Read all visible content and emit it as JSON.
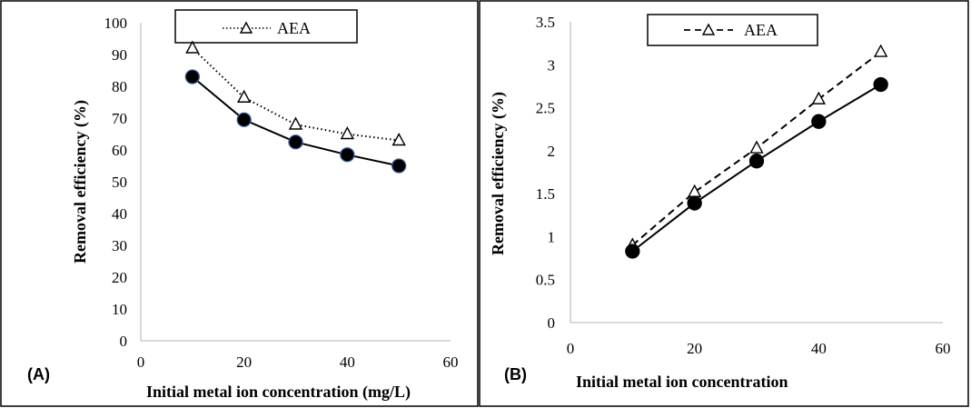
{
  "chart_data": [
    {
      "type": "line",
      "panel_label": "(A)",
      "xlabel": "Initial metal ion concentration (mg/L)",
      "ylabel": "Removal efficiency (%)",
      "xlim": [
        0,
        60
      ],
      "ylim": [
        0,
        100
      ],
      "xticks": [
        "0",
        "20",
        "40",
        "60"
      ],
      "yticks": [
        "0",
        "10",
        "20",
        "30",
        "40",
        "50",
        "60",
        "70",
        "80",
        "90",
        "100"
      ],
      "x": [
        10,
        20,
        30,
        40,
        50
      ],
      "series": [
        {
          "name": "AEA",
          "marker": "triangle-open",
          "line": "dotted",
          "values": [
            92,
            76.5,
            68,
            65,
            63
          ]
        },
        {
          "name": "",
          "marker": "circle-filled",
          "line": "solid",
          "values": [
            83,
            69.5,
            62.5,
            58.5,
            55
          ]
        }
      ],
      "legend": {
        "entries": [
          "AEA"
        ],
        "placement": "top"
      },
      "grid": false
    },
    {
      "type": "line",
      "panel_label": "(B)",
      "xlabel": "Initial metal ion concentration",
      "ylabel": "Removal efficiency (%)",
      "xlim": [
        0,
        60
      ],
      "ylim": [
        0,
        3.5
      ],
      "xticks": [
        "0",
        "20",
        "40",
        "60"
      ],
      "yticks": [
        "0",
        "0.5",
        "1",
        "1.5",
        "2",
        "2.5",
        "3",
        "3.5"
      ],
      "x": [
        10,
        20,
        30,
        40,
        50
      ],
      "series": [
        {
          "name": "AEA",
          "marker": "triangle-open",
          "line": "dashed",
          "values": [
            0.9,
            1.52,
            2.03,
            2.6,
            3.15
          ]
        },
        {
          "name": "",
          "marker": "circle-filled",
          "line": "solid",
          "values": [
            0.83,
            1.39,
            1.88,
            2.34,
            2.77
          ]
        }
      ],
      "legend": {
        "entries": [
          "AEA"
        ],
        "placement": "top"
      },
      "grid": false
    }
  ]
}
